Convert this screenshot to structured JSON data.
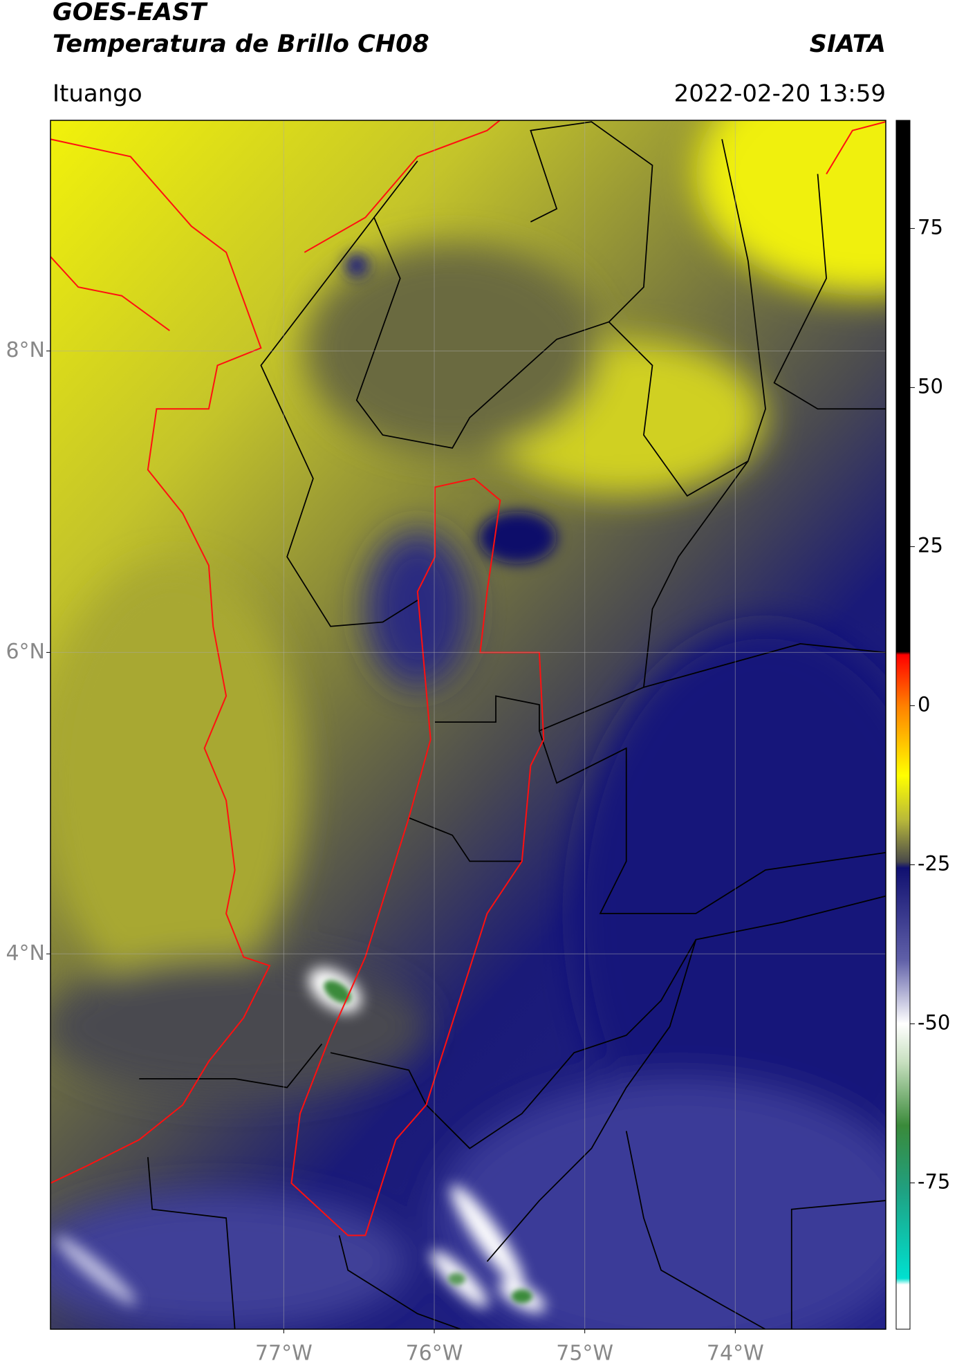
{
  "chart_data": {
    "type": "map",
    "title": "GOES-EAST",
    "subtitle": "Temperatura de Brillo CH08",
    "source": "SIATA",
    "location": "Ituango",
    "datetime": "2022-02-20 13:59",
    "xlim": [
      -78.55,
      -73.0
    ],
    "ylim": [
      1.51,
      9.53
    ],
    "xticks": [
      {
        "value": -77,
        "label": "77°W"
      },
      {
        "value": -76,
        "label": "76°W"
      },
      {
        "value": -75,
        "label": "75°W"
      },
      {
        "value": -74,
        "label": "74°W"
      }
    ],
    "yticks": [
      {
        "value": 8,
        "label": "8°N"
      },
      {
        "value": 6,
        "label": "6°N"
      },
      {
        "value": 4,
        "label": "4°N"
      }
    ],
    "grid": true,
    "colorbar": {
      "lim": [
        -98,
        92
      ],
      "ticks": [
        75,
        50,
        25,
        0,
        -25,
        -50,
        -75
      ],
      "stops": [
        {
          "value": 92,
          "color": "#000000"
        },
        {
          "value": 8.5,
          "color": "#000000"
        },
        {
          "value": 8,
          "color": "#ff0000"
        },
        {
          "value": 0,
          "color": "#ff8000"
        },
        {
          "value": -11,
          "color": "#ffff00"
        },
        {
          "value": -18,
          "color": "#b8b83a"
        },
        {
          "value": -24.5,
          "color": "#4a4a4a"
        },
        {
          "value": -25.5,
          "color": "#101070"
        },
        {
          "value": -40,
          "color": "#6060a8"
        },
        {
          "value": -50,
          "color": "#ffffff"
        },
        {
          "value": -56,
          "color": "#c8e0c0"
        },
        {
          "value": -66,
          "color": "#3a8a3a"
        },
        {
          "value": -76,
          "color": "#20a080"
        },
        {
          "value": -90,
          "color": "#00e0d0"
        },
        {
          "value": -91,
          "color": "#ffffff"
        },
        {
          "value": -98,
          "color": "#ffffff"
        }
      ]
    }
  }
}
